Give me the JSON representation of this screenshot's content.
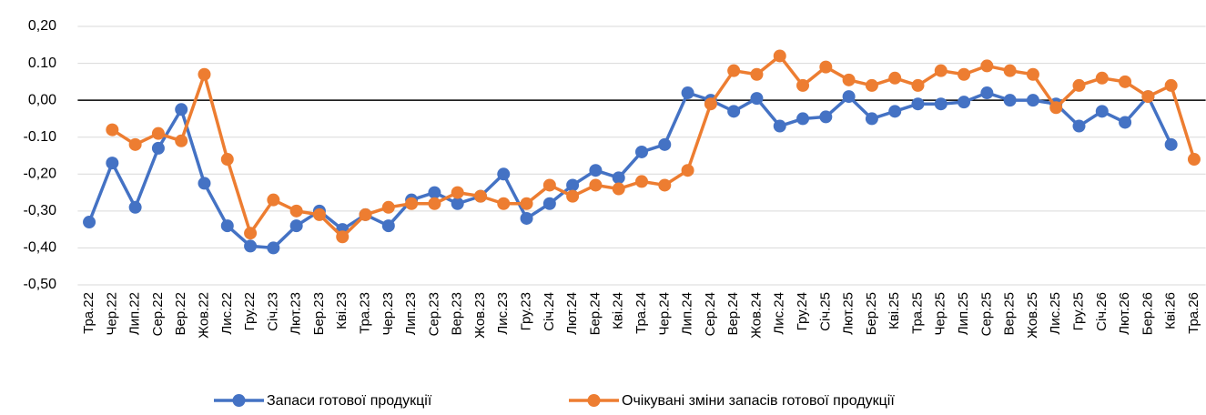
{
  "chart_data": {
    "type": "line",
    "categories": [
      "Тра.22",
      "Чер.22",
      "Лип.22",
      "Сер.22",
      "Вер.22",
      "Жов.22",
      "Лис.22",
      "Гру.22",
      "Січ.23",
      "Лют.23",
      "Бер.23",
      "Кві.23",
      "Тра.23",
      "Чер.23",
      "Лип.23",
      "Сер.23",
      "Вер.23",
      "Жов.23",
      "Лис.23",
      "Гру.23",
      "Січ.24",
      "Лют.24",
      "Бер.24",
      "Кві.24",
      "Тра.24",
      "Чер.24",
      "Лип.24",
      "Сер.24",
      "Вер.24",
      "Жов.24",
      "Лис.24",
      "Гру.24",
      "Січ.25",
      "Лют.25",
      "Бер.25",
      "Кві.25",
      "Тра.25",
      "Чер.25",
      "Лип.25",
      "Сер.25",
      "Вер.25",
      "Жов.25",
      "Лис.25",
      "Гру.25",
      "Січ.26",
      "Лют.26",
      "Бер.26",
      "Кві.26",
      "Тра.26"
    ],
    "series": [
      {
        "name": "Запаси готової продукції",
        "color": "#4472c4",
        "values": [
          -0.33,
          -0.17,
          -0.29,
          -0.13,
          -0.025,
          -0.225,
          -0.34,
          -0.395,
          -0.4,
          -0.34,
          -0.3,
          -0.35,
          -0.31,
          -0.34,
          -0.27,
          -0.25,
          -0.28,
          -0.26,
          -0.2,
          -0.32,
          -0.28,
          -0.23,
          -0.19,
          -0.21,
          -0.14,
          -0.12,
          0.02,
          0.0,
          -0.03,
          0.005,
          -0.07,
          -0.05,
          -0.045,
          0.01,
          -0.05,
          -0.03,
          -0.01,
          -0.01,
          -0.005,
          0.02,
          0.0,
          0.0,
          -0.01,
          -0.07,
          -0.03,
          -0.06,
          0.01,
          -0.12,
          null
        ]
      },
      {
        "name": "Очікувані зміни запасів готової продукції",
        "color": "#ed7d31",
        "values": [
          null,
          -0.08,
          -0.12,
          -0.09,
          -0.11,
          0.07,
          -0.16,
          -0.36,
          -0.27,
          -0.3,
          -0.31,
          -0.37,
          -0.31,
          -0.29,
          -0.28,
          -0.28,
          -0.25,
          -0.26,
          -0.28,
          -0.28,
          -0.23,
          -0.26,
          -0.23,
          -0.24,
          -0.22,
          -0.23,
          -0.19,
          -0.01,
          0.08,
          0.07,
          0.12,
          0.04,
          0.09,
          0.055,
          0.04,
          0.06,
          0.04,
          0.08,
          0.07,
          0.093,
          0.08,
          0.07,
          -0.02,
          0.04,
          0.06,
          0.05,
          0.01,
          0.04,
          -0.16
        ]
      }
    ],
    "ylim": [
      -0.5,
      0.2
    ],
    "yticks": [
      {
        "value": 0.2,
        "label": "0,20"
      },
      {
        "value": 0.1,
        "label": "0.10"
      },
      {
        "value": 0,
        "label": "0,00"
      },
      {
        "value": -0.1,
        "label": "-0.10"
      },
      {
        "value": -0.2,
        "label": "-0,20"
      },
      {
        "value": -0.3,
        "label": "-0,30"
      },
      {
        "value": -0.4,
        "label": "-0,40"
      },
      {
        "value": -0.5,
        "label": "-0,50"
      }
    ],
    "grid": true,
    "legend": "bottom"
  }
}
